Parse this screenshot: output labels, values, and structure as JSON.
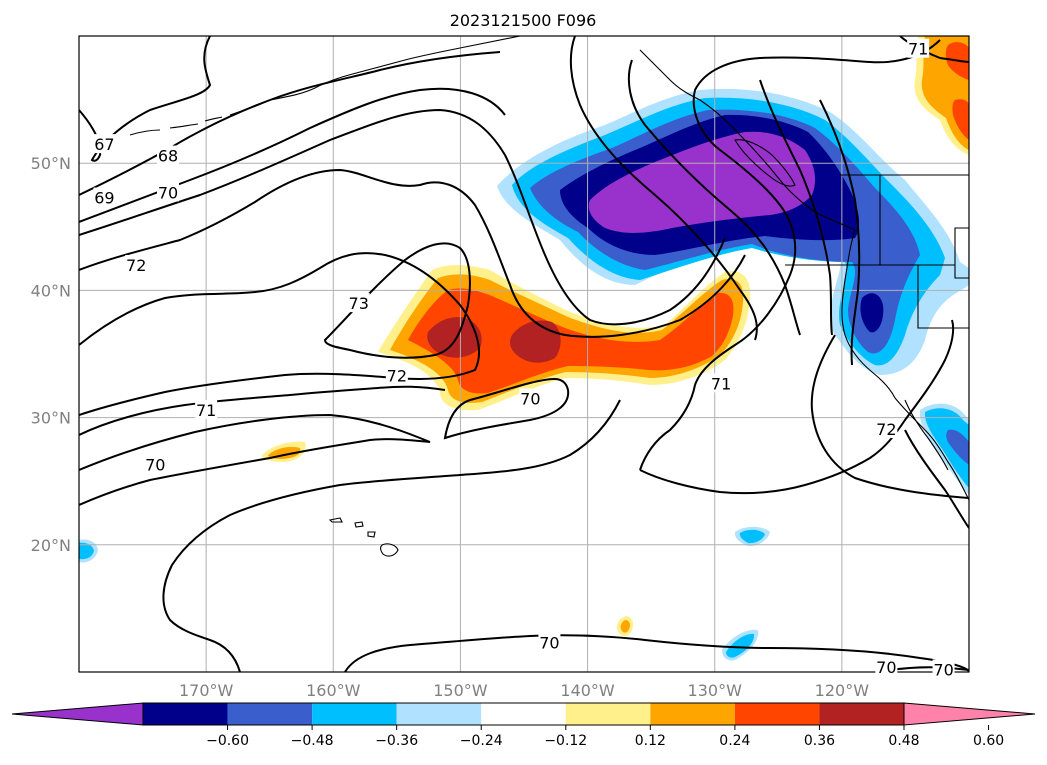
{
  "title": "2023121500 F096",
  "map": {
    "lon_range": [
      -180,
      -110
    ],
    "lat_range": [
      10,
      60
    ],
    "lat_ticks": [
      {
        "value": 20,
        "label": "20°N"
      },
      {
        "value": 30,
        "label": "30°N"
      },
      {
        "value": 40,
        "label": "40°N"
      },
      {
        "value": 50,
        "label": "50°N"
      }
    ],
    "lon_ticks": [
      {
        "value": -170,
        "label": "170°W"
      },
      {
        "value": -160,
        "label": "160°W"
      },
      {
        "value": -150,
        "label": "150°W"
      },
      {
        "value": -140,
        "label": "140°W"
      },
      {
        "value": -130,
        "label": "130°W"
      },
      {
        "value": -120,
        "label": "120°W"
      }
    ],
    "grid": true,
    "contour_labels": [
      {
        "text": "67",
        "lon": -178,
        "lat": 51.5
      },
      {
        "text": "68",
        "lon": -173,
        "lat": 50.6
      },
      {
        "text": "69",
        "lon": -178,
        "lat": 47.3
      },
      {
        "text": "70",
        "lon": -173,
        "lat": 47.7
      },
      {
        "text": "72",
        "lon": -175.5,
        "lat": 42.0
      },
      {
        "text": "73",
        "lon": -158,
        "lat": 39.0
      },
      {
        "text": "72",
        "lon": -155,
        "lat": 33.3
      },
      {
        "text": "71",
        "lon": -170,
        "lat": 30.6
      },
      {
        "text": "70",
        "lon": -174,
        "lat": 26.3
      },
      {
        "text": "70",
        "lon": -144.5,
        "lat": 31.5
      },
      {
        "text": "71",
        "lon": -129.5,
        "lat": 32.7
      },
      {
        "text": "70",
        "lon": -143,
        "lat": 12.3
      },
      {
        "text": "72",
        "lon": -116.5,
        "lat": 29.1
      },
      {
        "text": "71",
        "lon": -114,
        "lat": 59.0
      },
      {
        "text": "70",
        "lon": -116.5,
        "lat": 10.4
      },
      {
        "text": "70",
        "lon": -112,
        "lat": 10.2
      }
    ]
  },
  "colorbar": {
    "colors": [
      "#9932cc",
      "#00008b",
      "#3a5fcd",
      "#00bfff",
      "#b0e2ff",
      "#ffffff",
      "#fff08c",
      "#ffa500",
      "#ff4500",
      "#b22222",
      "#ff82ab"
    ],
    "ticks": [
      "−0.60",
      "−0.48",
      "−0.36",
      "−0.24",
      "−0.12",
      "0.12",
      "0.24",
      "0.36",
      "0.48",
      "0.60"
    ]
  },
  "palette": {
    "purple": "#9932cc",
    "navy": "#00008b",
    "royal_blue": "#3a5fcd",
    "deep_sky": "#00bfff",
    "light_sky": "#b0e2ff",
    "khaki": "#fff08c",
    "orange": "#ffa500",
    "orange_red": "#ff4500",
    "firebrick": "#b22222",
    "pink": "#ff82ab"
  }
}
